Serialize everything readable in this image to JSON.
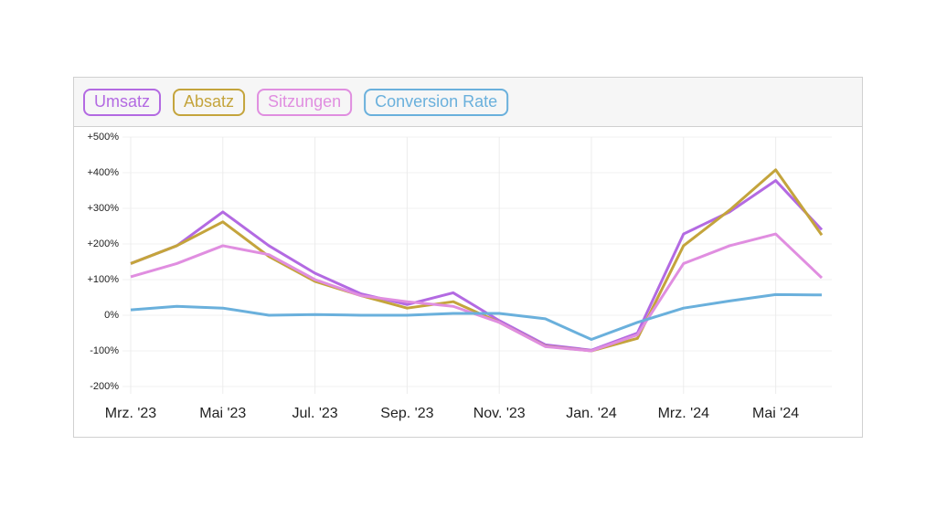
{
  "chart_data": {
    "type": "line",
    "categories": [
      "Mrz. '23",
      null,
      "Mai '23",
      null,
      "Jul. '23",
      null,
      "Sep. '23",
      null,
      "Nov. '23",
      null,
      "Jan. '24",
      null,
      "Mrz. '24",
      null,
      "Mai '24",
      null
    ],
    "series": [
      {
        "name": "Umsatz",
        "color": "#b36ae2",
        "values": [
          145,
          195,
          290,
          195,
          118,
          60,
          30,
          63,
          -15,
          -83,
          -98,
          -50,
          228,
          290,
          378,
          240
        ]
      },
      {
        "name": "Absatz",
        "color": "#c4a43c",
        "values": [
          145,
          195,
          262,
          165,
          95,
          55,
          20,
          38,
          -20,
          -87,
          -100,
          -65,
          195,
          295,
          408,
          225
        ]
      },
      {
        "name": "Sitzungen",
        "color": "#e08ee0",
        "values": [
          108,
          145,
          195,
          170,
          100,
          55,
          38,
          25,
          -20,
          -88,
          -100,
          -55,
          145,
          195,
          228,
          105
        ]
      },
      {
        "name": "Conversion Rate",
        "color": "#6ab0dc",
        "values": [
          15,
          25,
          20,
          0,
          2,
          0,
          0,
          5,
          5,
          -10,
          -68,
          -20,
          20,
          40,
          58,
          57
        ]
      }
    ],
    "ylim": [
      -200,
      500
    ],
    "yticks": [
      {
        "value": -200,
        "label": "-200%"
      },
      {
        "value": -100,
        "label": "-100%"
      },
      {
        "value": 0,
        "label": "0%"
      },
      {
        "value": 100,
        "label": "+100%"
      },
      {
        "value": 200,
        "label": "+200%"
      },
      {
        "value": 300,
        "label": "+300%"
      },
      {
        "value": 400,
        "label": "+400%"
      },
      {
        "value": 500,
        "label": "+500%"
      }
    ],
    "grid": true
  }
}
